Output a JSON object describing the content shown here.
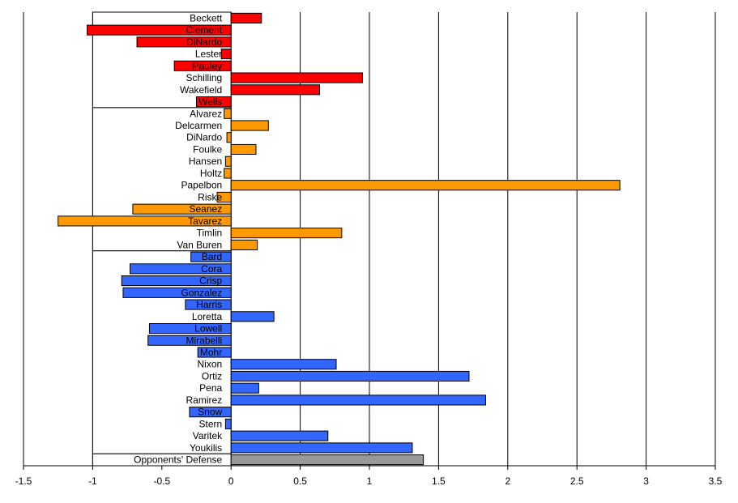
{
  "chart_data": {
    "type": "bar",
    "orientation": "horizontal",
    "xlim": [
      -1.5,
      3.5
    ],
    "x_ticks": [
      "-1.5",
      "-1",
      "-0.5",
      "0",
      "0.5",
      "1",
      "1.5",
      "2",
      "2.5",
      "3",
      "3.5"
    ],
    "grid": true,
    "colors": {
      "starter": "#ff0000",
      "reliever": "#ff9900",
      "batter": "#3366ff",
      "defense": "#999999"
    },
    "groups": [
      {
        "color_key": "starter",
        "bars": [
          {
            "label": "Beckett",
            "value": 0.22
          },
          {
            "label": "Clement",
            "value": -1.04
          },
          {
            "label": "DiNardo",
            "value": -0.68
          },
          {
            "label": "Lester",
            "value": -0.07
          },
          {
            "label": "Pauley",
            "value": -0.41
          },
          {
            "label": "Schilling",
            "value": 0.95
          },
          {
            "label": "Wakefield",
            "value": 0.64
          },
          {
            "label": "Wells",
            "value": -0.25
          }
        ]
      },
      {
        "color_key": "reliever",
        "bars": [
          {
            "label": "Alvarez",
            "value": -0.05
          },
          {
            "label": "Delcarmen",
            "value": 0.27
          },
          {
            "label": "DiNardo",
            "value": -0.03
          },
          {
            "label": "Foulke",
            "value": 0.18
          },
          {
            "label": "Hansen",
            "value": -0.04
          },
          {
            "label": "Holtz",
            "value": -0.05
          },
          {
            "label": "Papelbon",
            "value": 2.81
          },
          {
            "label": "Riske",
            "value": -0.1
          },
          {
            "label": "Seanez",
            "value": -0.71
          },
          {
            "label": "Tavarez",
            "value": -1.25
          },
          {
            "label": "Timlin",
            "value": 0.8
          },
          {
            "label": "Van Buren",
            "value": 0.19
          }
        ]
      },
      {
        "color_key": "batter",
        "bars": [
          {
            "label": "Bard",
            "value": -0.29
          },
          {
            "label": "Cora",
            "value": -0.73
          },
          {
            "label": "Crisp",
            "value": -0.79
          },
          {
            "label": "Gonzalez",
            "value": -0.78
          },
          {
            "label": "Harris",
            "value": -0.33
          },
          {
            "label": "Loretta",
            "value": 0.31
          },
          {
            "label": "Lowell",
            "value": -0.59
          },
          {
            "label": "Mirabelli",
            "value": -0.6
          },
          {
            "label": "Mohr",
            "value": -0.24
          },
          {
            "label": "Nixon",
            "value": 0.76
          },
          {
            "label": "Ortiz",
            "value": 1.72
          },
          {
            "label": "Pena",
            "value": 0.2
          },
          {
            "label": "Ramirez",
            "value": 1.84
          },
          {
            "label": "Snow",
            "value": -0.3
          },
          {
            "label": "Stern",
            "value": -0.04
          },
          {
            "label": "Varitek",
            "value": 0.7
          },
          {
            "label": "Youkilis",
            "value": 1.31
          }
        ]
      },
      {
        "color_key": "defense",
        "bars": [
          {
            "label": "Opponents' Defense",
            "value": 1.39
          }
        ]
      }
    ]
  }
}
